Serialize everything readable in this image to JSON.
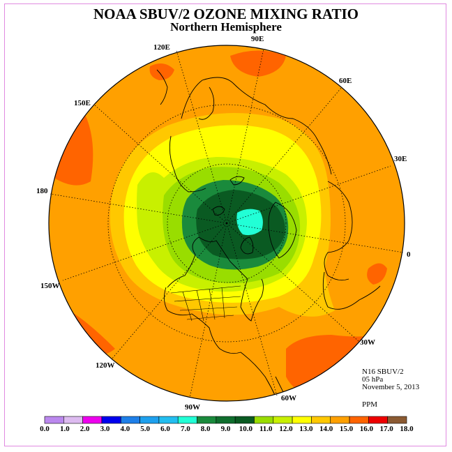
{
  "title": "NOAA SBUV/2 OZONE MIXING RATIO",
  "subtitle": "Northern Hemisphere",
  "longitude_labels": {
    "lon_90e": "90E",
    "lon_120e": "120E",
    "lon_60e": "60E",
    "lon_150e": "150E",
    "lon_30e": "30E",
    "lon_180": "180",
    "lon_0": "0",
    "lon_150w": "150W",
    "lon_30w": "30W",
    "lon_120w": "120W",
    "lon_60w": "60W",
    "lon_90w": "90W"
  },
  "info": {
    "instrument": "N16 SBUV/2",
    "level": "05 hPa",
    "date": "November 5, 2013",
    "units": "PPM"
  },
  "colorbar": {
    "labels": [
      "0.0",
      "1.0",
      "2.0",
      "3.0",
      "4.0",
      "5.0",
      "6.0",
      "7.0",
      "8.0",
      "9.0",
      "10.0",
      "11.0",
      "12.0",
      "13.0",
      "14.0",
      "15.0",
      "16.0",
      "17.0",
      "18.0"
    ],
    "colors": [
      "#bb88ee",
      "#ddbbf0",
      "#ee00ee",
      "#0000ee",
      "#1e7fe8",
      "#1ea0ee",
      "#23bef0",
      "#22ffd6",
      "#1a8a3c",
      "#0f6e2d",
      "#0a5a22",
      "#99dd00",
      "#c8f000",
      "#ffff00",
      "#ffc800",
      "#ffa000",
      "#ff6400",
      "#ee0000",
      "#8b5a32"
    ]
  },
  "colors": {
    "frame": "#e08ae0",
    "ocean_base": "#ffa000",
    "coast": "#000000"
  }
}
